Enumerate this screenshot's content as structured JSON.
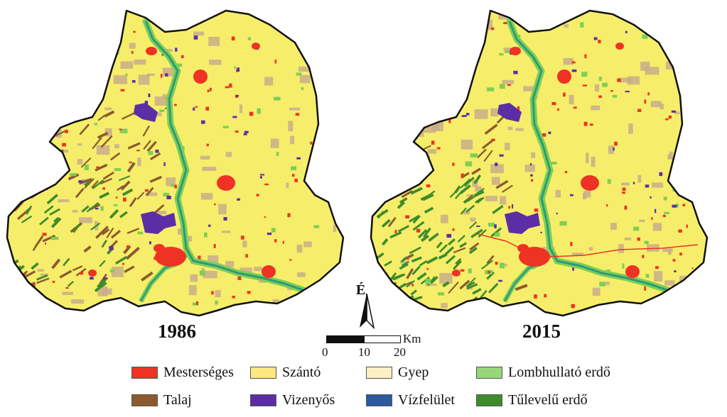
{
  "maps": {
    "left": {
      "year": "1986"
    },
    "right": {
      "year": "2015"
    }
  },
  "north_arrow": {
    "label": "É"
  },
  "scale_bar": {
    "ticks": [
      "0",
      "10",
      "20"
    ],
    "unit": "Km"
  },
  "legend": {
    "items": [
      {
        "label": "Mesterséges",
        "color": "#ee3224"
      },
      {
        "label": "Szántó",
        "color": "#fde882"
      },
      {
        "label": "Gyep",
        "color": "#fdf0c4"
      },
      {
        "label": "Lombhullató erdő",
        "color": "#98d67c"
      },
      {
        "label": "Talaj",
        "color": "#8c5a2e"
      },
      {
        "label": "Vizenyős",
        "color": "#5b2ea6"
      },
      {
        "label": "Vízfelület",
        "color": "#2c5aa0"
      },
      {
        "label": "Tűlevelű erdő",
        "color": "#3d8c2c"
      }
    ]
  },
  "colors": {
    "farmland": "#f6ee6a",
    "settlement": "#ee3224",
    "river": "#2e9a7a",
    "wetland": "#5b2ea6",
    "soil": "#8c5a2e",
    "grassland_patch": "#c9ad8a",
    "deciduous_forest": "#7dcf55",
    "conifer_forest": "#3d8c2c"
  }
}
